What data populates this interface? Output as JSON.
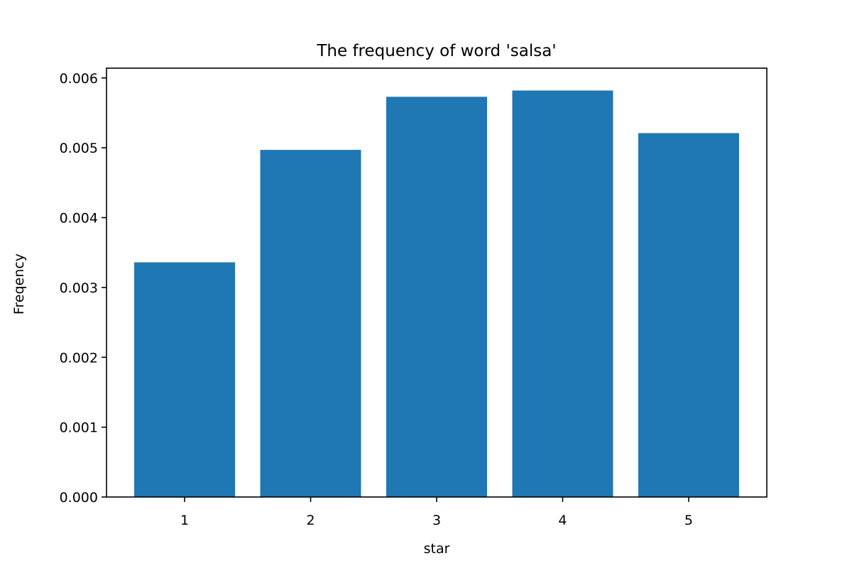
{
  "chart_data": {
    "type": "bar",
    "title": "The frequency of word 'salsa'",
    "xlabel": "star",
    "ylabel": "Freqency",
    "categories": [
      "1",
      "2",
      "3",
      "4",
      "5"
    ],
    "values": [
      0.00336,
      0.00497,
      0.00573,
      0.00582,
      0.00521
    ],
    "ylim": [
      0,
      0.00614
    ],
    "yticks": [
      "0.000",
      "0.001",
      "0.002",
      "0.003",
      "0.004",
      "0.005",
      "0.006"
    ],
    "ytick_values": [
      0,
      0.001,
      0.002,
      0.003,
      0.004,
      0.005,
      0.006
    ],
    "grid": false,
    "legend": "none",
    "bar_color": "#1f77b4"
  }
}
